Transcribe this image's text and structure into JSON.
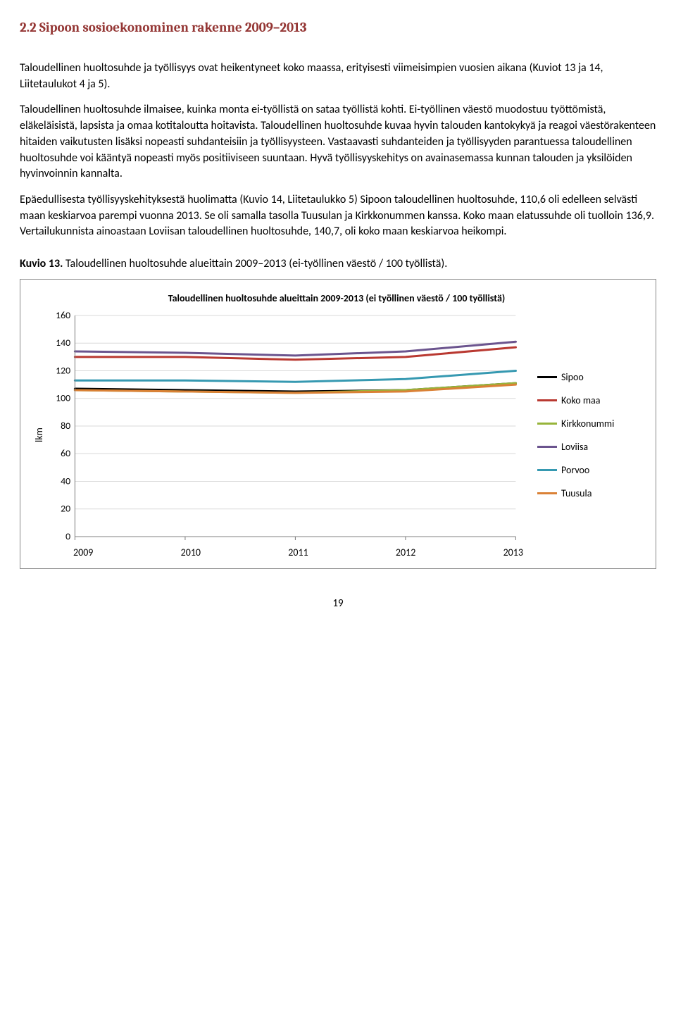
{
  "heading": "2.2 Sipoon sosioekonominen rakenne 2009–2013",
  "para1": "Taloudellinen huoltosuhde ja työllisyys ovat heikentyneet koko maassa, erityisesti viimeisimpien vuosien aikana (Kuviot 13 ja 14, Liitetaulukot 4 ja 5).",
  "para2": "Taloudellinen huoltosuhde ilmaisee, kuinka monta ei-työllistä on sataa työllistä kohti. Ei-työllinen väestö muodostuu työttömistä, eläkeläisistä, lapsista ja omaa kotitaloutta hoitavista. Taloudellinen huoltosuhde kuvaa hyvin talouden kantokykyä ja reagoi väestörakenteen hitaiden vaikutusten lisäksi nopeasti suhdanteisiin ja työllisyysteen. Vastaavasti suhdanteiden ja työllisyyden parantuessa taloudellinen huoltosuhde voi kääntyä nopeasti myös positiiviseen suuntaan. Hyvä työllisyyskehitys on avainasemassa kunnan talouden ja yksilöiden hyvinvoinnin kannalta.",
  "para3": "Epäedullisesta työllisyyskehityksestä huolimatta (Kuvio 14, Liitetaulukko 5) Sipoon taloudellinen huoltosuhde, 110,6 oli edelleen selvästi maan keskiarvoa parempi vuonna 2013. Se oli samalla tasolla Tuusulan ja Kirkkonummen kanssa. Koko maan elatussuhde oli tuolloin 136,9. Vertailukunnista ainoastaan Loviisan taloudellinen huoltosuhde, 140,7, oli koko maan keskiarvoa heikompi.",
  "caption_bold": "Kuvio 13.",
  "caption_rest": " Taloudellinen huoltosuhde alueittain 2009–2013 (ei-työllinen väestö / 100 työllistä).",
  "chart": {
    "title": "Taloudellinen huoltosuhde alueittain 2009-2013 (ei työllinen väestö / 100 työllistä)",
    "ylabel": "lkm",
    "ylim": [
      0,
      160
    ],
    "ytick_step": 20,
    "yticks": [
      0,
      20,
      40,
      60,
      80,
      100,
      120,
      140,
      160
    ],
    "xlabels": [
      "2009",
      "2010",
      "2011",
      "2012",
      "2013"
    ],
    "grid_color": "#d9d9d9",
    "axis_color": "#808080",
    "background_color": "#ffffff",
    "tick_fontsize": 14,
    "line_width": 3,
    "series": [
      {
        "name": "Sipoo",
        "color": "#000000",
        "values": [
          107,
          106,
          105,
          106,
          111
        ]
      },
      {
        "name": "Koko maa",
        "color": "#b93931",
        "values": [
          130,
          130,
          128,
          130,
          137
        ]
      },
      {
        "name": "Kirkkonummi",
        "color": "#97b43a",
        "values": [
          106,
          105,
          104,
          106,
          111
        ]
      },
      {
        "name": "Loviisa",
        "color": "#6b548e",
        "values": [
          134,
          133,
          131,
          134,
          141
        ]
      },
      {
        "name": "Porvoo",
        "color": "#3699b1",
        "values": [
          113,
          113,
          112,
          114,
          120
        ]
      },
      {
        "name": "Tuusula",
        "color": "#da8136",
        "values": [
          106,
          105,
          104,
          105,
          110
        ]
      }
    ]
  },
  "page_number": "19"
}
